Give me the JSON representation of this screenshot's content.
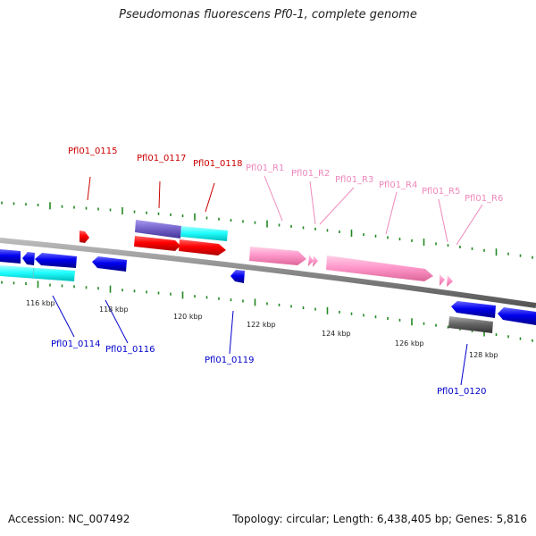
{
  "title": "Pseudomonas fluorescens Pf0-1, complete genome",
  "accession": "Accession: NC_007492",
  "summary": "Topology: circular; Length: 6,438,405 bp; Genes: 5,816",
  "colors": {
    "cds_forward": "#ff0000",
    "cds_reverse": "#0000ee",
    "rna": "#ff99cc",
    "feature_cyan": "#22ffff",
    "feature_purple": "#7766cc",
    "feature_gray": "#666666",
    "backbone": "#888888",
    "tick": "#228822"
  },
  "scale_labels": [
    "116 kbp",
    "118 kbp",
    "120 kbp",
    "122 kbp",
    "124 kbp",
    "126 kbp",
    "128 kbp"
  ],
  "upper_labels": [
    {
      "text": "Pfl01_0115",
      "color": "#cc0000"
    },
    {
      "text": "Pfl01_0117",
      "color": "#cc0000"
    },
    {
      "text": "Pfl01_0118",
      "color": "#cc0000"
    },
    {
      "text": "Pfl01_R1",
      "color": "#ee88bb"
    },
    {
      "text": "Pfl01_R2",
      "color": "#ee88bb"
    },
    {
      "text": "Pfl01_R3",
      "color": "#ee88bb"
    },
    {
      "text": "Pfl01_R4",
      "color": "#ee88bb"
    },
    {
      "text": "Pfl01_R5",
      "color": "#ee88bb"
    },
    {
      "text": "Pfl01_R6",
      "color": "#ee88bb"
    }
  ],
  "lower_labels": [
    {
      "text": "Pfl01_0114",
      "color": "#0000cc"
    },
    {
      "text": "Pfl01_0116",
      "color": "#0000cc"
    },
    {
      "text": "Pfl01_0119",
      "color": "#0000cc"
    },
    {
      "text": "Pfl01_0120",
      "color": "#0000cc"
    }
  ]
}
